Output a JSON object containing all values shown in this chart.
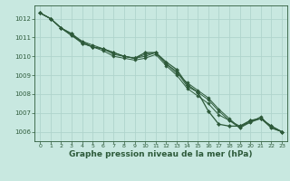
{
  "background_color": "#c8e8e0",
  "grid_color": "#b0d4cc",
  "line_color": "#2d5a3a",
  "marker_color": "#2d5a3a",
  "xlabel": "Graphe pression niveau de la mer (hPa)",
  "xlabel_fontsize": 6.5,
  "xlim": [
    -0.5,
    23.5
  ],
  "ylim": [
    1005.5,
    1012.7
  ],
  "yticks": [
    1006,
    1007,
    1008,
    1009,
    1010,
    1011,
    1012
  ],
  "xticks": [
    0,
    1,
    2,
    3,
    4,
    5,
    6,
    7,
    8,
    9,
    10,
    11,
    12,
    13,
    14,
    15,
    16,
    17,
    18,
    19,
    20,
    21,
    22,
    23
  ],
  "series": [
    [
      1012.3,
      1012.0,
      1011.5,
      1011.2,
      1010.7,
      1010.5,
      1010.4,
      1010.2,
      1010.0,
      1009.9,
      1010.2,
      1010.2,
      1009.7,
      1009.3,
      1008.5,
      1008.1,
      1007.1,
      1006.4,
      1006.3,
      1006.3,
      1006.6,
      1006.7,
      1006.3,
      1006.0
    ],
    [
      1012.3,
      1012.0,
      1011.5,
      1011.1,
      1010.7,
      1010.5,
      1010.3,
      1010.0,
      1009.9,
      1009.8,
      1009.9,
      1010.1,
      1009.5,
      1009.0,
      1008.3,
      1007.9,
      1007.5,
      1006.9,
      1006.6,
      1006.3,
      1006.5,
      1006.7,
      1006.2,
      1006.0
    ],
    [
      1012.3,
      1012.0,
      1011.5,
      1011.1,
      1010.8,
      1010.6,
      1010.4,
      1010.1,
      1010.0,
      1009.9,
      1010.0,
      1010.2,
      1009.6,
      1009.2,
      1008.4,
      1008.1,
      1007.7,
      1007.1,
      1006.6,
      1006.2,
      1006.5,
      1006.8,
      1006.2,
      1006.0
    ],
    [
      1012.3,
      1012.0,
      1011.5,
      1011.2,
      1010.8,
      1010.5,
      1010.4,
      1010.2,
      1010.0,
      1009.9,
      1010.1,
      1010.2,
      1009.6,
      1009.1,
      1008.6,
      1008.2,
      1007.8,
      1007.2,
      1006.7,
      1006.2,
      1006.6,
      1006.7,
      1006.3,
      1006.0
    ]
  ]
}
